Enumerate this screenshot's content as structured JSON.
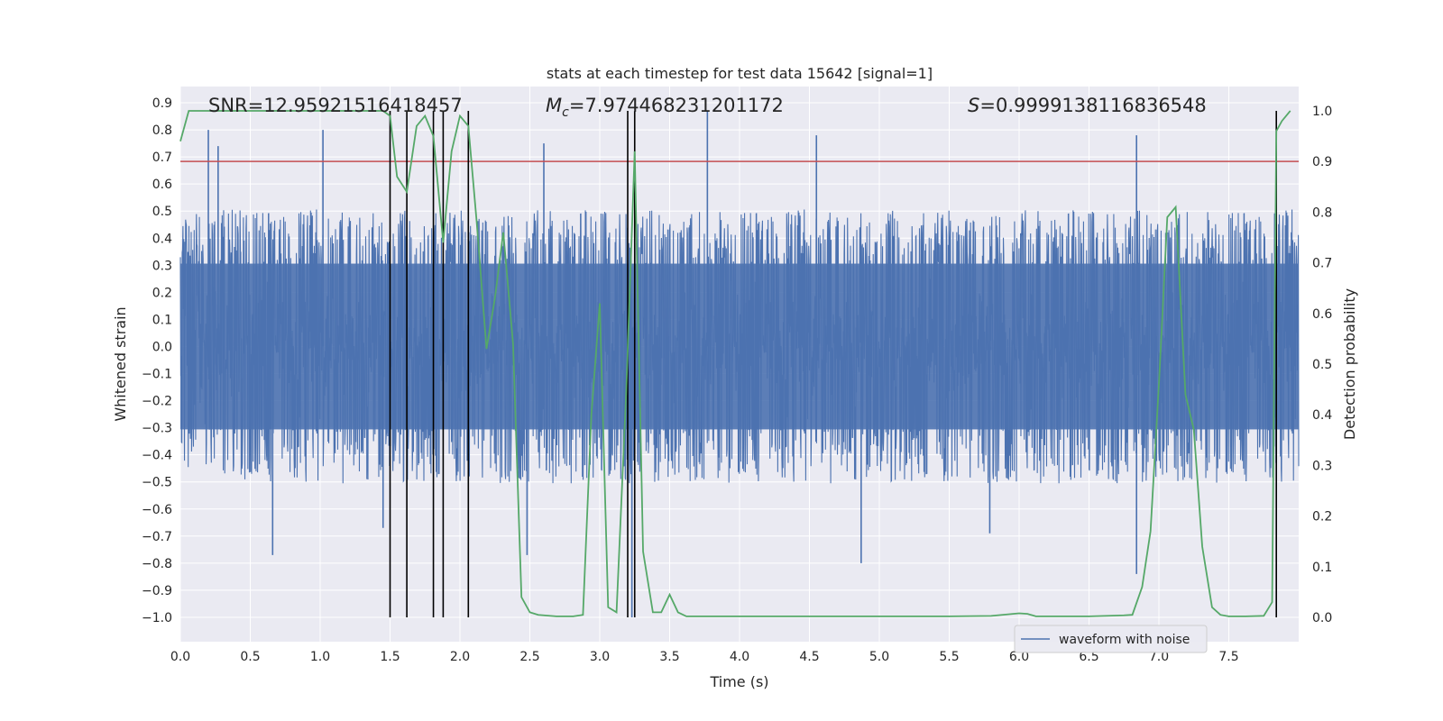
{
  "chart_data": {
    "type": "line",
    "title": "stats at each timestep for test data 15642 [signal=1]",
    "xlabel": "Time (s)",
    "ylabel": "Whitened strain",
    "y2label": "Detection probability",
    "xlim": [
      0.0,
      8.0
    ],
    "ylim": [
      -1.09,
      0.96
    ],
    "y2lim": [
      -0.048,
      1.048
    ],
    "x_ticks": [
      "0.0",
      "0.5",
      "1.0",
      "1.5",
      "2.0",
      "2.5",
      "3.0",
      "3.5",
      "4.0",
      "4.5",
      "5.0",
      "5.5",
      "6.0",
      "6.5",
      "7.0",
      "7.5"
    ],
    "y_ticks": [
      "0.9",
      "0.8",
      "0.7",
      "0.6",
      "0.5",
      "0.4",
      "0.3",
      "0.2",
      "0.1",
      "0.0",
      "−0.1",
      "−0.2",
      "−0.3",
      "−0.4",
      "−0.5",
      "−0.6",
      "−0.7",
      "−0.8",
      "−0.9",
      "−1.0"
    ],
    "y2_ticks": [
      "1.0",
      "0.9",
      "0.8",
      "0.7",
      "0.6",
      "0.5",
      "0.4",
      "0.3",
      "0.2",
      "0.1",
      "0.0"
    ],
    "annotations": {
      "snr": {
        "label": "SNR",
        "value": "12.95921516418457"
      },
      "mc": {
        "symbol": "M",
        "sub": "c",
        "value": "7.974468231201172"
      },
      "s": {
        "symbol": "S",
        "value": "0.9999138116836548"
      }
    },
    "threshold_line": {
      "value": 0.9,
      "axis": "y2"
    },
    "vertical_lines": [
      1.5,
      1.62,
      1.81,
      1.88,
      2.06,
      3.2,
      3.25,
      7.84
    ],
    "vertical_line_range": [
      0.0,
      1.0
    ],
    "series": [
      {
        "name": "waveform with noise",
        "axis": "y",
        "kind": "noise",
        "core_amplitude": 0.36,
        "peak_max": 0.87,
        "peak_min": -1.0
      },
      {
        "name": "detection probability",
        "axis": "y2",
        "x": [
          0.0,
          0.06,
          0.12,
          0.5,
          1.0,
          1.3,
          1.45,
          1.5,
          1.55,
          1.62,
          1.69,
          1.75,
          1.81,
          1.88,
          1.94,
          2.0,
          2.06,
          2.12,
          2.19,
          2.25,
          2.31,
          2.38,
          2.44,
          2.5,
          2.56,
          2.69,
          2.81,
          2.88,
          2.94,
          3.0,
          3.06,
          3.12,
          3.19,
          3.25,
          3.31,
          3.38,
          3.44,
          3.5,
          3.56,
          3.62,
          3.75,
          4.5,
          5.0,
          5.5,
          5.8,
          6.0,
          6.06,
          6.12,
          6.25,
          6.5,
          6.75,
          6.81,
          6.88,
          6.94,
          7.0,
          7.06,
          7.12,
          7.19,
          7.25,
          7.31,
          7.38,
          7.44,
          7.5,
          7.62,
          7.75,
          7.81,
          7.84,
          7.88,
          7.94
        ],
        "values": [
          0.94,
          1.0,
          1.0,
          1.0,
          1.0,
          1.0,
          1.0,
          0.99,
          0.87,
          0.84,
          0.97,
          0.99,
          0.95,
          0.74,
          0.92,
          0.99,
          0.97,
          0.78,
          0.53,
          0.63,
          0.76,
          0.54,
          0.04,
          0.01,
          0.005,
          0.002,
          0.002,
          0.005,
          0.4,
          0.62,
          0.02,
          0.01,
          0.45,
          0.92,
          0.13,
          0.01,
          0.01,
          0.045,
          0.01,
          0.002,
          0.002,
          0.002,
          0.002,
          0.002,
          0.003,
          0.008,
          0.007,
          0.002,
          0.002,
          0.002,
          0.004,
          0.005,
          0.06,
          0.17,
          0.46,
          0.79,
          0.81,
          0.44,
          0.37,
          0.14,
          0.02,
          0.005,
          0.002,
          0.002,
          0.003,
          0.03,
          0.96,
          0.98,
          1.0
        ]
      }
    ],
    "colors": {
      "background": "#eaeaf2",
      "grid": "#ffffff",
      "waveform": "#4c72b0",
      "probability": "#55a868",
      "threshold": "#c44e52",
      "vlines": "#000000"
    }
  }
}
